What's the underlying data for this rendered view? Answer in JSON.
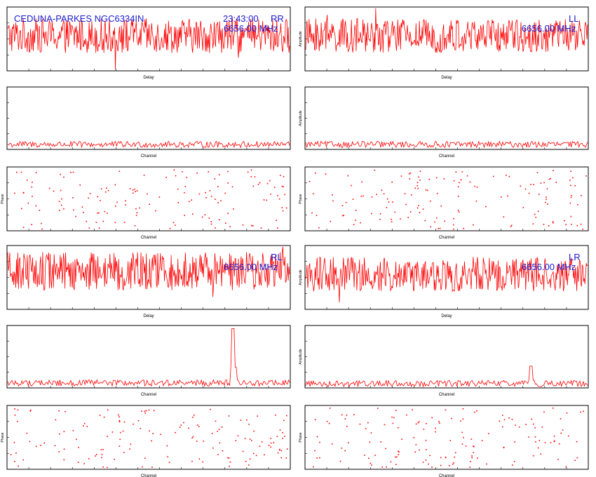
{
  "colors": {
    "trace": "#ff0000",
    "frame": "#000000",
    "label": "#1a1acc"
  },
  "header": {
    "source": "CEDUNA-PARKES  NGC6334IN",
    "time": "23:43:00",
    "frequency": "6656.00 MHz"
  },
  "labels": {
    "delay": "Delay",
    "channel": "Channel",
    "amplitude": "Amplitude",
    "phase": "Phase"
  },
  "polarizations": [
    "RR",
    "LL",
    "RL",
    "LR"
  ],
  "chart_data": [
    {
      "type": "line",
      "polarization": "RR",
      "xlabel": "Delay",
      "ylabel": "",
      "pattern": "noise",
      "level": 0.55,
      "spread": 0.45
    },
    {
      "type": "line",
      "polarization": "LL",
      "xlabel": "Delay",
      "ylabel": "Amplitude",
      "pattern": "noise",
      "level": 0.55,
      "spread": 0.45
    },
    {
      "type": "line",
      "polarization": "RR",
      "xlabel": "Channel",
      "ylabel": "",
      "pattern": "baseline",
      "level": 0.08,
      "spread": 0.05,
      "peak": null
    },
    {
      "type": "line",
      "polarization": "LL",
      "xlabel": "Channel",
      "ylabel": "Amplitude",
      "pattern": "baseline",
      "level": 0.08,
      "spread": 0.05,
      "peak": null
    },
    {
      "type": "scatter",
      "polarization": "RR",
      "xlabel": "Channel",
      "ylabel": "Phase",
      "pattern": "random_points"
    },
    {
      "type": "scatter",
      "polarization": "LL",
      "xlabel": "Channel",
      "ylabel": "Phase",
      "pattern": "random_points"
    },
    {
      "type": "line",
      "polarization": "RL",
      "xlabel": "Delay",
      "ylabel": "",
      "pattern": "noise",
      "level": 0.6,
      "spread": 0.5
    },
    {
      "type": "line",
      "polarization": "LR",
      "xlabel": "Delay",
      "ylabel": "Amplitude",
      "pattern": "noise",
      "level": 0.55,
      "spread": 0.45
    },
    {
      "type": "line",
      "polarization": "RL",
      "xlabel": "Channel",
      "ylabel": "",
      "pattern": "baseline",
      "level": 0.08,
      "spread": 0.05,
      "peak": {
        "position": 0.8,
        "height": 0.95
      }
    },
    {
      "type": "line",
      "polarization": "LR",
      "xlabel": "Channel",
      "ylabel": "Amplitude",
      "pattern": "baseline",
      "level": 0.07,
      "spread": 0.05,
      "peak": {
        "position": 0.8,
        "height": 0.35
      }
    },
    {
      "type": "scatter",
      "polarization": "RL",
      "xlabel": "Channel",
      "ylabel": "Phase",
      "pattern": "random_points"
    },
    {
      "type": "scatter",
      "polarization": "LR",
      "xlabel": "Channel",
      "ylabel": "Phase",
      "pattern": "random_points"
    }
  ]
}
